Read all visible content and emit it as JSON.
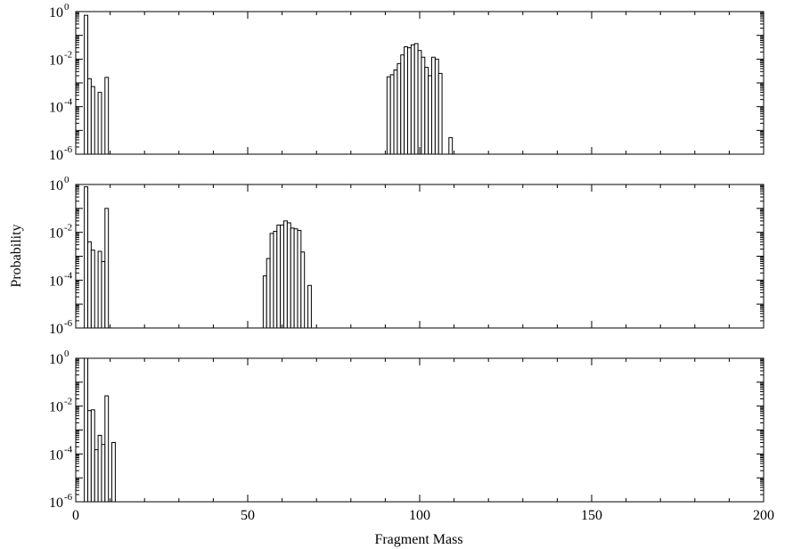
{
  "chart_data": {
    "type": "bar",
    "xlabel": "Fragment Mass",
    "ylabel": "Probability",
    "xlim": [
      0,
      200
    ],
    "x_ticks": [
      "0",
      "50",
      "100",
      "150",
      "200"
    ],
    "y_scale": "log",
    "y_tick_labels": [
      {
        "base": "10",
        "exp": "0"
      },
      {
        "base": "10",
        "exp": "-2"
      },
      {
        "base": "10",
        "exp": "-4"
      },
      {
        "base": "10",
        "exp": "-6"
      }
    ],
    "panels": [
      {
        "ylim": [
          1e-06,
          1
        ],
        "bars": [
          {
            "x": 3,
            "y": 0.7
          },
          {
            "x": 4,
            "y": 0.0015
          },
          {
            "x": 5,
            "y": 0.0007
          },
          {
            "x": 7,
            "y": 0.0004
          },
          {
            "x": 9,
            "y": 0.0017
          },
          {
            "x": 91,
            "y": 0.0018
          },
          {
            "x": 92,
            "y": 0.0022
          },
          {
            "x": 93,
            "y": 0.0035
          },
          {
            "x": 94,
            "y": 0.0065
          },
          {
            "x": 95,
            "y": 0.015
          },
          {
            "x": 96,
            "y": 0.033
          },
          {
            "x": 97,
            "y": 0.03
          },
          {
            "x": 98,
            "y": 0.04
          },
          {
            "x": 99,
            "y": 0.045
          },
          {
            "x": 100,
            "y": 0.023
          },
          {
            "x": 101,
            "y": 0.012
          },
          {
            "x": 102,
            "y": 0.0045
          },
          {
            "x": 103,
            "y": 0.002
          },
          {
            "x": 104,
            "y": 0.012
          },
          {
            "x": 105,
            "y": 0.01
          },
          {
            "x": 106,
            "y": 0.0025
          },
          {
            "x": 109,
            "y": 5e-06
          }
        ]
      },
      {
        "ylim": [
          1e-06,
          1
        ],
        "bars": [
          {
            "x": 3,
            "y": 0.8
          },
          {
            "x": 4,
            "y": 0.004
          },
          {
            "x": 5,
            "y": 0.0018
          },
          {
            "x": 7,
            "y": 0.0016
          },
          {
            "x": 8,
            "y": 0.0006
          },
          {
            "x": 9,
            "y": 0.1
          },
          {
            "x": 55,
            "y": 0.00015
          },
          {
            "x": 56,
            "y": 0.0008
          },
          {
            "x": 57,
            "y": 0.009
          },
          {
            "x": 58,
            "y": 0.011
          },
          {
            "x": 59,
            "y": 0.02
          },
          {
            "x": 60,
            "y": 0.02
          },
          {
            "x": 61,
            "y": 0.03
          },
          {
            "x": 62,
            "y": 0.025
          },
          {
            "x": 63,
            "y": 0.015
          },
          {
            "x": 64,
            "y": 0.014
          },
          {
            "x": 65,
            "y": 0.012
          },
          {
            "x": 66,
            "y": 0.0015
          },
          {
            "x": 68,
            "y": 6e-05
          }
        ]
      },
      {
        "ylim": [
          1e-06,
          1
        ],
        "bars": [
          {
            "x": 3,
            "y": 1.0
          },
          {
            "x": 4,
            "y": 0.0065
          },
          {
            "x": 5,
            "y": 0.007
          },
          {
            "x": 6,
            "y": 0.00015
          },
          {
            "x": 7,
            "y": 0.0006
          },
          {
            "x": 8,
            "y": 0.00025
          },
          {
            "x": 9,
            "y": 0.027
          },
          {
            "x": 11,
            "y": 0.0003
          }
        ]
      }
    ]
  }
}
